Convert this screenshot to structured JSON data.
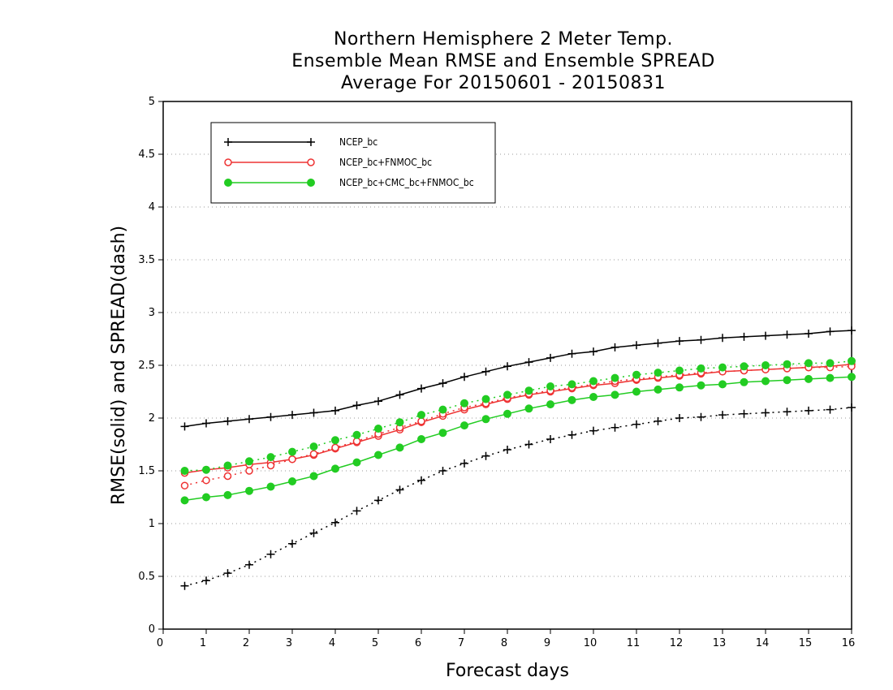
{
  "chart_data": {
    "type": "line",
    "title": [
      "Northern Hemisphere 2 Meter Temp.",
      "Ensemble Mean RMSE and Ensemble SPREAD",
      "Average For 20150601 - 20150831"
    ],
    "xlabel": "Forecast days",
    "ylabel": "RMSE(solid) and SPREAD(dash)",
    "xlim": [
      0,
      16
    ],
    "ylim": [
      0,
      5
    ],
    "xticks": [
      "0",
      "1",
      "2",
      "3",
      "4",
      "5",
      "6",
      "7",
      "8",
      "9",
      "10",
      "11",
      "12",
      "13",
      "14",
      "15",
      "16"
    ],
    "yticks": [
      "0",
      "0.5",
      "1",
      "1.5",
      "2",
      "2.5",
      "3",
      "3.5",
      "4",
      "4.5",
      "5"
    ],
    "grid": "horizontal-dotted",
    "legend_position": "top-left",
    "x": [
      0.5,
      1,
      1.5,
      2,
      2.5,
      3,
      3.5,
      4,
      4.5,
      5,
      5.5,
      6,
      6.5,
      7,
      7.5,
      8,
      8.5,
      9,
      9.5,
      10,
      10.5,
      11,
      11.5,
      12,
      12.5,
      13,
      13.5,
      14,
      14.5,
      15,
      15.5,
      16
    ],
    "series": [
      {
        "name": "NCEP_bc",
        "color": "#000000",
        "marker": "plus",
        "style": "solid",
        "values": [
          1.92,
          1.95,
          1.97,
          1.99,
          2.01,
          2.03,
          2.05,
          2.07,
          2.12,
          2.16,
          2.22,
          2.28,
          2.33,
          2.39,
          2.44,
          2.49,
          2.53,
          2.57,
          2.61,
          2.63,
          2.67,
          2.69,
          2.71,
          2.73,
          2.74,
          2.76,
          2.77,
          2.78,
          2.79,
          2.8,
          2.82,
          2.83
        ]
      },
      {
        "name": "NCEP_bc",
        "color": "#000000",
        "marker": "plus",
        "style": "dash",
        "values": [
          0.41,
          0.46,
          0.53,
          0.61,
          0.71,
          0.81,
          0.91,
          1.01,
          1.12,
          1.22,
          1.32,
          1.41,
          1.5,
          1.57,
          1.64,
          1.7,
          1.75,
          1.8,
          1.84,
          1.88,
          1.91,
          1.94,
          1.97,
          2.0,
          2.01,
          2.03,
          2.04,
          2.05,
          2.06,
          2.07,
          2.08,
          2.1
        ]
      },
      {
        "name": "NCEP_bc+FNMOC_bc",
        "color": "#ee3333",
        "marker": "open-circle",
        "style": "solid",
        "values": [
          1.48,
          1.51,
          1.53,
          1.56,
          1.58,
          1.61,
          1.65,
          1.71,
          1.77,
          1.83,
          1.89,
          1.96,
          2.02,
          2.08,
          2.13,
          2.18,
          2.22,
          2.25,
          2.28,
          2.31,
          2.33,
          2.36,
          2.38,
          2.4,
          2.42,
          2.44,
          2.45,
          2.46,
          2.47,
          2.48,
          2.49,
          2.51
        ]
      },
      {
        "name": "NCEP_bc+FNMOC_bc",
        "color": "#ee3333",
        "marker": "open-circle",
        "style": "dash",
        "values": [
          1.36,
          1.41,
          1.45,
          1.5,
          1.55,
          1.61,
          1.66,
          1.72,
          1.78,
          1.85,
          1.91,
          1.97,
          2.04,
          2.1,
          2.14,
          2.19,
          2.23,
          2.26,
          2.29,
          2.32,
          2.35,
          2.37,
          2.39,
          2.41,
          2.43,
          2.44,
          2.45,
          2.46,
          2.47,
          2.48,
          2.48,
          2.49
        ]
      },
      {
        "name": "NCEP_bc+CMC_bc+FNMOC_bc",
        "color": "#22cc22",
        "marker": "filled-circle",
        "style": "solid",
        "values": [
          1.22,
          1.25,
          1.27,
          1.31,
          1.35,
          1.4,
          1.45,
          1.52,
          1.58,
          1.65,
          1.72,
          1.8,
          1.86,
          1.93,
          1.99,
          2.04,
          2.09,
          2.13,
          2.17,
          2.2,
          2.22,
          2.25,
          2.27,
          2.29,
          2.31,
          2.32,
          2.34,
          2.35,
          2.36,
          2.37,
          2.38,
          2.39
        ]
      },
      {
        "name": "NCEP_bc+CMC_bc+FNMOC_bc",
        "color": "#22cc22",
        "marker": "filled-circle",
        "style": "dash",
        "values": [
          1.5,
          1.51,
          1.55,
          1.59,
          1.63,
          1.68,
          1.73,
          1.79,
          1.84,
          1.9,
          1.96,
          2.03,
          2.08,
          2.14,
          2.18,
          2.22,
          2.26,
          2.3,
          2.32,
          2.35,
          2.38,
          2.41,
          2.43,
          2.45,
          2.47,
          2.48,
          2.49,
          2.5,
          2.51,
          2.52,
          2.52,
          2.54
        ]
      }
    ],
    "legend": [
      "NCEP_bc",
      "NCEP_bc+FNMOC_bc",
      "NCEP_bc+CMC_bc+FNMOC_bc"
    ]
  }
}
